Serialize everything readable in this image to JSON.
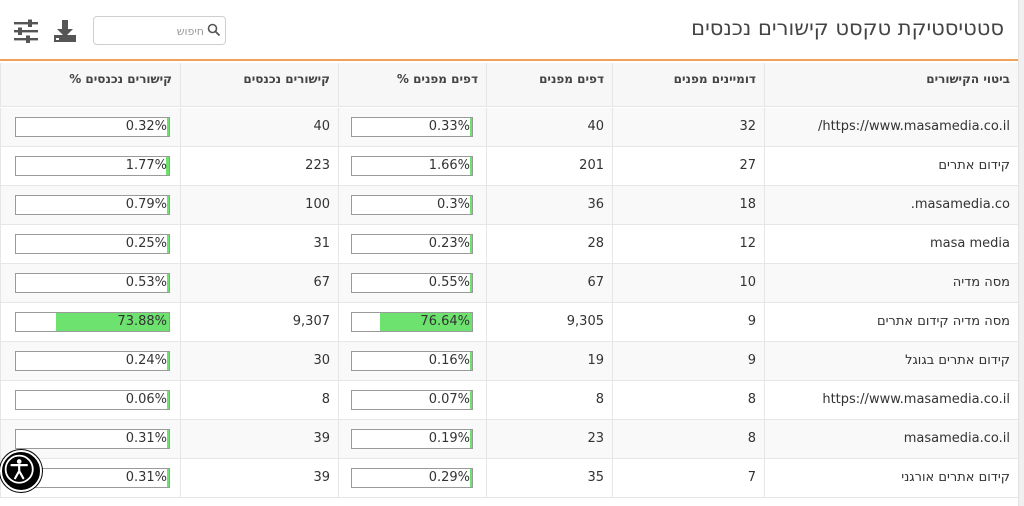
{
  "header": {
    "title": "סטטיסטיקת טקסט קישורים נכנסים",
    "search_placeholder": "חיפוש"
  },
  "icons": {
    "search": "search-icon",
    "download": "download-icon",
    "filter": "filter-sliders-icon",
    "accessibility": "accessibility-icon"
  },
  "colors": {
    "accent": "#f0a25c",
    "bar_fill": "#6ee26e"
  },
  "columns": [
    "ביטוי הקישורים",
    "דומיינים מפנים",
    "דפים מפנים",
    "דפים מפנים %",
    "קישורים נכנסים",
    "קישורים נכנסים %"
  ],
  "rows": [
    {
      "anchor": "https://www.masamedia.co.il/",
      "domains": "32",
      "pages": "40",
      "pages_pct": "0.33%",
      "pages_frac": 0.0033,
      "links": "40",
      "links_pct": "0.32%",
      "links_frac": 0.0032
    },
    {
      "anchor": "קידום אתרים",
      "domains": "27",
      "pages": "201",
      "pages_pct": "1.66%",
      "pages_frac": 0.0166,
      "links": "223",
      "links_pct": "1.77%",
      "links_frac": 0.0177
    },
    {
      "anchor": "masamedia.co.",
      "domains": "18",
      "pages": "36",
      "pages_pct": "0.3%",
      "pages_frac": 0.003,
      "links": "100",
      "links_pct": "0.79%",
      "links_frac": 0.0079
    },
    {
      "anchor": "masa media",
      "domains": "12",
      "pages": "28",
      "pages_pct": "0.23%",
      "pages_frac": 0.0023,
      "links": "31",
      "links_pct": "0.25%",
      "links_frac": 0.0025
    },
    {
      "anchor": "מסה מדיה",
      "domains": "10",
      "pages": "67",
      "pages_pct": "0.55%",
      "pages_frac": 0.0055,
      "links": "67",
      "links_pct": "0.53%",
      "links_frac": 0.0053
    },
    {
      "anchor": "מסה מדיה קידום אתרים",
      "domains": "9",
      "pages": "9,305",
      "pages_pct": "76.64%",
      "pages_frac": 0.7664,
      "links": "9,307",
      "links_pct": "73.88%",
      "links_frac": 0.7388
    },
    {
      "anchor": "קידום אתרים בגוגל",
      "domains": "9",
      "pages": "19",
      "pages_pct": "0.16%",
      "pages_frac": 0.0016,
      "links": "30",
      "links_pct": "0.24%",
      "links_frac": 0.0024
    },
    {
      "anchor": "https://www.masamedia.co.il",
      "domains": "8",
      "pages": "8",
      "pages_pct": "0.07%",
      "pages_frac": 0.0007,
      "links": "8",
      "links_pct": "0.06%",
      "links_frac": 0.0006
    },
    {
      "anchor": "masamedia.co.il",
      "domains": "8",
      "pages": "23",
      "pages_pct": "0.19%",
      "pages_frac": 0.0019,
      "links": "39",
      "links_pct": "0.31%",
      "links_frac": 0.0031
    },
    {
      "anchor": "קידום אתרים אורגני",
      "domains": "7",
      "pages": "35",
      "pages_pct": "0.29%",
      "pages_frac": 0.0029,
      "links": "39",
      "links_pct": "0.31%",
      "links_frac": 0.0031
    }
  ]
}
